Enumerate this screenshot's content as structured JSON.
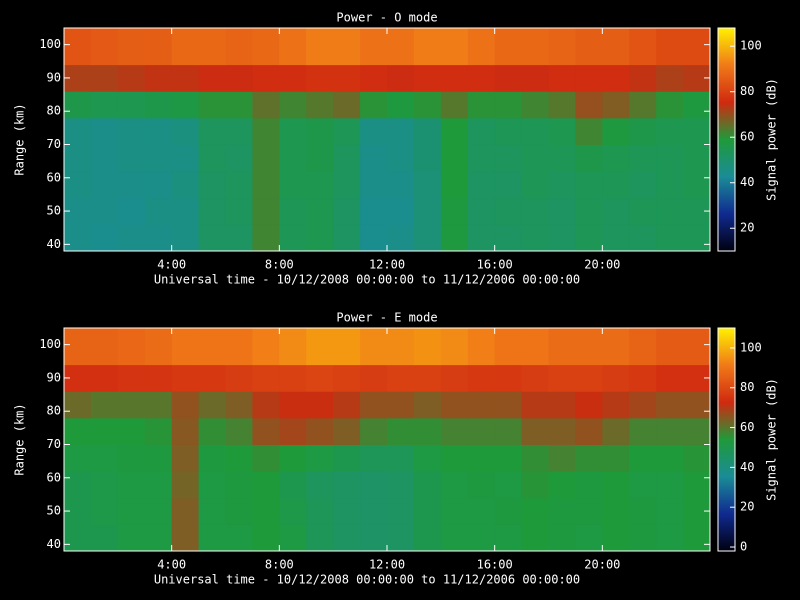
{
  "chart_data": [
    {
      "type": "heatmap",
      "title": "Power - O mode",
      "xlabel": "Universal time - 10/12/2008 00:00:00 to 11/12/2006 00:00:00",
      "ylabel": "Range (km)",
      "colorbar_label": "Signal power (dB)",
      "xbins": [
        0,
        1,
        2,
        3,
        4,
        5,
        6,
        7,
        8,
        9,
        10,
        11,
        12,
        13,
        14,
        15,
        16,
        17,
        18,
        19,
        20,
        21,
        22,
        23,
        24
      ],
      "ybins": [
        38,
        46,
        54,
        62,
        70,
        78,
        86,
        94,
        105
      ],
      "values": [
        [
          45,
          44,
          45,
          45,
          46,
          52,
          52,
          62,
          54,
          55,
          52,
          44,
          45,
          48,
          58,
          52,
          52,
          53,
          52,
          54,
          53,
          53,
          54,
          54
        ],
        [
          45,
          45,
          44,
          46,
          46,
          52,
          53,
          62,
          54,
          55,
          52,
          44,
          44,
          48,
          58,
          52,
          53,
          53,
          52,
          54,
          53,
          54,
          54,
          54
        ],
        [
          46,
          45,
          45,
          45,
          47,
          52,
          53,
          62,
          55,
          55,
          53,
          45,
          45,
          48,
          59,
          52,
          52,
          54,
          53,
          54,
          54,
          53,
          54,
          55
        ],
        [
          46,
          45,
          46,
          46,
          46,
          53,
          52,
          62,
          55,
          56,
          53,
          45,
          46,
          49,
          59,
          53,
          53,
          54,
          54,
          56,
          55,
          54,
          54,
          55
        ],
        [
          46,
          45,
          46,
          46,
          47,
          53,
          53,
          62,
          55,
          56,
          54,
          46,
          46,
          49,
          59,
          53,
          54,
          54,
          55,
          62,
          58,
          56,
          55,
          55
        ],
        [
          56,
          55,
          55,
          56,
          57,
          60,
          60,
          65,
          62,
          64,
          66,
          60,
          58,
          60,
          64,
          60,
          60,
          62,
          64,
          70,
          68,
          64,
          60,
          58
        ],
        [
          72,
          72,
          73,
          74,
          74,
          75,
          75,
          76,
          76,
          77,
          77,
          76,
          75,
          76,
          76,
          76,
          75,
          75,
          76,
          76,
          76,
          74,
          72,
          73
        ],
        [
          84,
          85,
          86,
          86,
          88,
          88,
          87,
          88,
          90,
          92,
          92,
          90,
          90,
          92,
          92,
          90,
          88,
          88,
          87,
          86,
          86,
          84,
          82,
          82
        ]
      ],
      "xlim": [
        0,
        24
      ],
      "ylim": [
        38,
        105
      ],
      "xticks": [
        {
          "value": 4,
          "label": "4:00"
        },
        {
          "value": 8,
          "label": "8:00"
        },
        {
          "value": 12,
          "label": "12:00"
        },
        {
          "value": 16,
          "label": "16:00"
        },
        {
          "value": 20,
          "label": "20:00"
        }
      ],
      "yticks": [
        40,
        50,
        60,
        70,
        80,
        90,
        100
      ],
      "clim": [
        10,
        108
      ],
      "cticks": [
        20,
        40,
        60,
        80,
        100
      ],
      "colorscale": [
        "#000010",
        "#102a90",
        "#1a8c96",
        "#1f9a3a",
        "#d02a10",
        "#f07a18",
        "#fff000"
      ]
    },
    {
      "type": "heatmap",
      "title": "Power - E mode",
      "xlabel": "Universal time - 10/12/2008 00:00:00 to 11/12/2006 00:00:00",
      "ylabel": "Range (km)",
      "colorbar_label": "Signal power (dB)",
      "xbins": [
        0,
        1,
        2,
        3,
        4,
        5,
        6,
        7,
        8,
        9,
        10,
        11,
        12,
        13,
        14,
        15,
        16,
        17,
        18,
        19,
        20,
        21,
        22,
        23,
        24
      ],
      "ybins": [
        38,
        46,
        54,
        62,
        70,
        78,
        86,
        94,
        105
      ],
      "values": [
        [
          50,
          50,
          52,
          52,
          64,
          52,
          52,
          54,
          52,
          48,
          46,
          45,
          46,
          50,
          52,
          52,
          52,
          54,
          53,
          52,
          54,
          53,
          52,
          54
        ],
        [
          50,
          51,
          52,
          52,
          64,
          52,
          53,
          54,
          51,
          48,
          46,
          45,
          46,
          50,
          52,
          52,
          53,
          54,
          53,
          53,
          54,
          53,
          52,
          54
        ],
        [
          50,
          51,
          52,
          52,
          63,
          52,
          53,
          54,
          50,
          47,
          46,
          45,
          46,
          50,
          52,
          53,
          52,
          55,
          54,
          53,
          54,
          52,
          52,
          54
        ],
        [
          52,
          52,
          53,
          53,
          64,
          53,
          54,
          56,
          54,
          52,
          50,
          48,
          48,
          52,
          54,
          54,
          54,
          56,
          58,
          56,
          56,
          54,
          54,
          55
        ],
        [
          54,
          54,
          54,
          55,
          65,
          56,
          58,
          66,
          68,
          66,
          64,
          58,
          56,
          56,
          58,
          58,
          58,
          64,
          64,
          66,
          62,
          58,
          58,
          58
        ],
        [
          62,
          60,
          60,
          60,
          66,
          62,
          64,
          70,
          72,
          72,
          70,
          66,
          66,
          64,
          66,
          66,
          66,
          70,
          70,
          72,
          70,
          68,
          66,
          66
        ],
        [
          74,
          74,
          75,
          75,
          76,
          76,
          77,
          78,
          78,
          79,
          78,
          77,
          78,
          78,
          77,
          76,
          76,
          77,
          78,
          78,
          77,
          76,
          74,
          74
        ],
        [
          86,
          86,
          87,
          88,
          90,
          90,
          90,
          92,
          94,
          96,
          96,
          94,
          94,
          95,
          94,
          92,
          90,
          90,
          88,
          88,
          88,
          86,
          84,
          84
        ]
      ],
      "xlim": [
        0,
        24
      ],
      "ylim": [
        38,
        105
      ],
      "xticks": [
        {
          "value": 4,
          "label": "4:00"
        },
        {
          "value": 8,
          "label": "8:00"
        },
        {
          "value": 12,
          "label": "12:00"
        },
        {
          "value": 16,
          "label": "16:00"
        },
        {
          "value": 20,
          "label": "20:00"
        }
      ],
      "yticks": [
        40,
        50,
        60,
        70,
        80,
        90,
        100
      ],
      "clim": [
        -2,
        110
      ],
      "cticks": [
        0,
        20,
        40,
        60,
        80,
        100
      ],
      "colorscale": [
        "#000010",
        "#102a90",
        "#1a8c96",
        "#1f9a3a",
        "#d02a10",
        "#f07a18",
        "#fff000"
      ]
    }
  ]
}
